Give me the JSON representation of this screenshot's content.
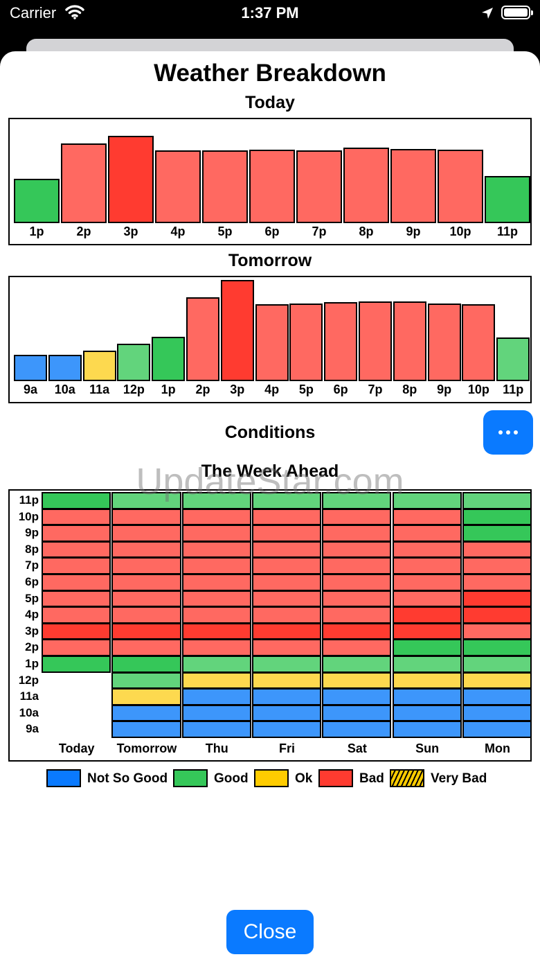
{
  "status": {
    "carrier": "Carrier",
    "time": "1:37 PM"
  },
  "title": "Weather Breakdown",
  "colors": {
    "not_so_good": "#3d96fb",
    "good": "#35c759",
    "good_light": "#62d47c",
    "ok": "#fdd94f",
    "bad": "#ff6961",
    "very_bad": "#ff3b30"
  },
  "today": {
    "title": "Today",
    "hours": [
      "1p",
      "2p",
      "3p",
      "4p",
      "5p",
      "6p",
      "7p",
      "8p",
      "9p",
      "10p",
      "11p"
    ],
    "levels": [
      0.48,
      0.86,
      0.94,
      0.78,
      0.78,
      0.79,
      0.78,
      0.81,
      0.8,
      0.79,
      0.51
    ],
    "conditions": [
      "good",
      "bad",
      "very_bad",
      "bad",
      "bad",
      "bad",
      "bad",
      "bad",
      "bad",
      "bad",
      "good"
    ]
  },
  "tomorrow": {
    "title": "Tomorrow",
    "hours": [
      "9a",
      "10a",
      "11a",
      "12p",
      "1p",
      "2p",
      "3p",
      "4p",
      "5p",
      "6p",
      "7p",
      "8p",
      "9p",
      "10p",
      "11p"
    ],
    "levels": [
      0.26,
      0.26,
      0.3,
      0.37,
      0.44,
      0.83,
      1.0,
      0.76,
      0.77,
      0.78,
      0.79,
      0.79,
      0.77,
      0.76,
      0.43
    ],
    "conditions": [
      "not_so_good",
      "not_so_good",
      "ok",
      "good_light",
      "good",
      "bad",
      "very_bad",
      "bad",
      "bad",
      "bad",
      "bad",
      "bad",
      "bad",
      "bad",
      "good_light"
    ]
  },
  "conditions_label": "Conditions",
  "more_button": {
    "icon": "ellipsis-icon"
  },
  "week": {
    "title": "The Week Ahead",
    "row_labels": [
      "11p",
      "10p",
      "9p",
      "8p",
      "7p",
      "6p",
      "5p",
      "4p",
      "3p",
      "2p",
      "1p",
      "12p",
      "11a",
      "10a",
      "9a"
    ],
    "days": [
      {
        "label": "Today",
        "cells": [
          "good",
          "bad",
          "bad",
          "bad",
          "bad",
          "bad",
          "bad",
          "bad",
          "very_bad",
          "bad",
          "good",
          null,
          null,
          null,
          null
        ]
      },
      {
        "label": "Tomorrow",
        "cells": [
          "good_light",
          "bad",
          "bad",
          "bad",
          "bad",
          "bad",
          "bad",
          "bad",
          "very_bad",
          "bad",
          "good",
          "good_light",
          "ok",
          "not_so_good",
          "not_so_good"
        ]
      },
      {
        "label": "Thu",
        "cells": [
          "good_light",
          "bad",
          "bad",
          "bad",
          "bad",
          "bad",
          "bad",
          "bad",
          "very_bad",
          "bad",
          "good_light",
          "ok",
          "not_so_good",
          "not_so_good",
          "not_so_good"
        ]
      },
      {
        "label": "Fri",
        "cells": [
          "good_light",
          "bad",
          "bad",
          "bad",
          "bad",
          "bad",
          "bad",
          "bad",
          "very_bad",
          "bad",
          "good_light",
          "ok",
          "not_so_good",
          "not_so_good",
          "not_so_good"
        ]
      },
      {
        "label": "Sat",
        "cells": [
          "good_light",
          "bad",
          "bad",
          "bad",
          "bad",
          "bad",
          "bad",
          "bad",
          "very_bad",
          "bad",
          "good_light",
          "ok",
          "not_so_good",
          "not_so_good",
          "not_so_good"
        ]
      },
      {
        "label": "Sun",
        "cells": [
          "good_light",
          "bad",
          "bad",
          "bad",
          "bad",
          "bad",
          "bad",
          "very_bad",
          "very_bad",
          "good",
          "good_light",
          "ok",
          "not_so_good",
          "not_so_good",
          "not_so_good"
        ]
      },
      {
        "label": "Mon",
        "cells": [
          "good_light",
          "good",
          "good",
          "bad",
          "bad",
          "bad",
          "very_bad",
          "very_bad",
          "bad",
          "good",
          "good_light",
          "ok",
          "not_so_good",
          "not_so_good",
          "not_so_good"
        ]
      }
    ]
  },
  "legend": [
    {
      "label": "Not So Good",
      "color": "#0a7aff"
    },
    {
      "label": "Good",
      "color": "#35c759"
    },
    {
      "label": "Ok",
      "color": "#ffcc00"
    },
    {
      "label": "Bad",
      "color": "#ff3b30"
    },
    {
      "label": "Very Bad",
      "pattern": "hatched"
    }
  ],
  "watermark": "UpdateStar.com",
  "close_label": "Close"
}
